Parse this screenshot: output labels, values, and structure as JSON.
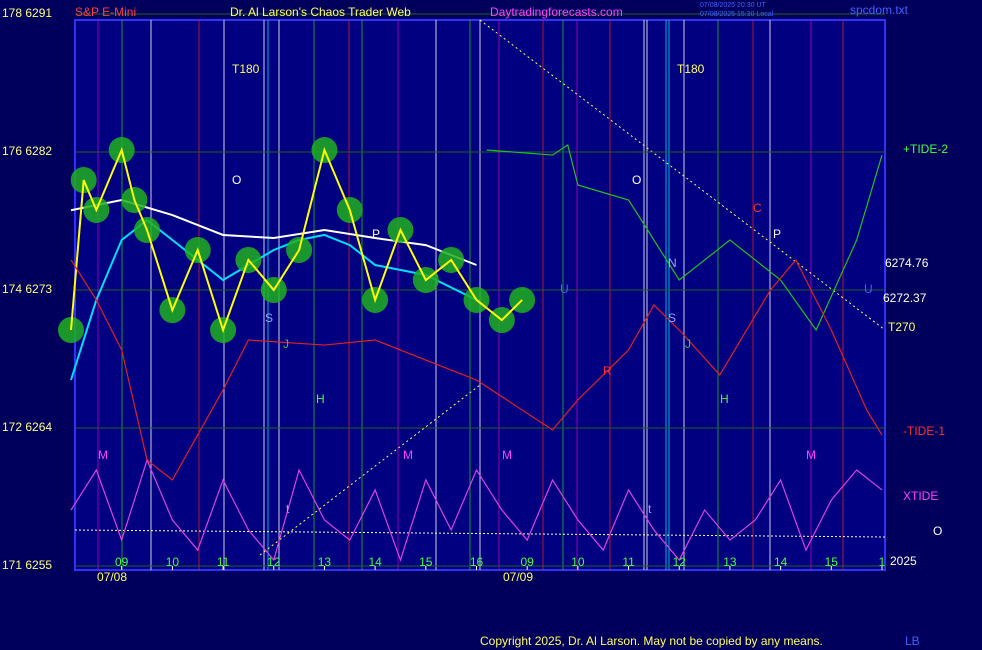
{
  "chart_data": {
    "type": "line",
    "title": "Dr. Al Larson's Chaos Trader Web",
    "symbol": "S&P E-Mini",
    "site": "Daytradingforecasts.com",
    "file": "spcdom.txt",
    "timestamps": [
      "07/08/2025 20:30 UT",
      "07/08/2025 15:30 Local"
    ],
    "copyright": "Copyright 2025, Dr. Al Larson. May not be copied by any means.",
    "corner": "LB",
    "year": "2025",
    "dates": [
      "07/08",
      "07/09"
    ],
    "xlim": [
      0,
      16
    ],
    "xticks": [
      {
        "value": 1,
        "label": "09"
      },
      {
        "value": 2,
        "label": "10"
      },
      {
        "value": 3,
        "label": "11"
      },
      {
        "value": 4,
        "label": "12"
      },
      {
        "value": 5,
        "label": "13"
      },
      {
        "value": 6,
        "label": "14"
      },
      {
        "value": 7,
        "label": "15"
      },
      {
        "value": 8,
        "label": "16"
      },
      {
        "value": 9,
        "label": "09"
      },
      {
        "value": 10,
        "label": "10"
      },
      {
        "value": 11,
        "label": "11"
      },
      {
        "value": 12,
        "label": "12"
      },
      {
        "value": 13,
        "label": "13"
      },
      {
        "value": 14,
        "label": "14"
      },
      {
        "value": 15,
        "label": "15"
      },
      {
        "value": 16,
        "label": "1"
      }
    ],
    "ylim": [
      6255,
      6291
    ],
    "yticks": [
      {
        "value": 6291,
        "label": "178 6291"
      },
      {
        "value": 6282,
        "label": "176 6282"
      },
      {
        "value": 6273,
        "label": "174 6273"
      },
      {
        "value": 6264,
        "label": "172 6264"
      },
      {
        "value": 6255,
        "label": "171 6255"
      }
    ],
    "tide_labels": [
      "+TIDE-2",
      "-TIDE-1",
      "XTIDE",
      "O",
      "T270"
    ],
    "price_labels": [
      6274.76,
      6272.37
    ],
    "annotations": [
      "T180",
      "T180",
      "O",
      "O",
      "S",
      "S",
      "N",
      "P",
      "P",
      "C",
      "H",
      "H",
      "M",
      "M",
      "M",
      "M",
      "t",
      "t",
      "U",
      "U",
      "J",
      "J",
      "R"
    ],
    "series": [
      {
        "color": "#ffffff",
        "x": [
          0,
          1,
          2,
          3,
          4,
          5,
          6,
          7,
          8
        ],
        "values": [
          6278.2,
          6278.87,
          6277.89,
          6276.59,
          6276.39,
          6276.91,
          6276.39,
          6275.93,
          6274.63
        ]
      },
      {
        "color": "#00e0ff",
        "x": [
          0,
          0.5,
          1,
          1.5,
          2,
          2.5,
          3,
          3.5,
          4,
          4.5,
          5,
          5.5,
          6,
          7,
          8
        ],
        "values": [
          6267.13,
          6272.35,
          6276.26,
          6277.56,
          6276.26,
          6274.96,
          6273.65,
          6274.63,
          6275.61,
          6276.26,
          6276.59,
          6275.93,
          6274.63,
          6273.98,
          6272.35
        ]
      },
      {
        "color": "#ffff00",
        "x": [
          0,
          0.25,
          0.5,
          1,
          1.25,
          1.5,
          2,
          2.5,
          3,
          3.5,
          4,
          4.5,
          5,
          5.5,
          6,
          6.5,
          7,
          7.5,
          8,
          8.5,
          8.9
        ],
        "values": [
          6270.39,
          6280.17,
          6278.22,
          6282.13,
          6278.87,
          6276.91,
          6271.69,
          6275.61,
          6270.39,
          6274.96,
          6273,
          6275.61,
          6282.13,
          6278.22,
          6272.35,
          6276.91,
          6273.65,
          6274.96,
          6272.35,
          6271.04,
          6272.35
        ]
      },
      {
        "color": "#20c020",
        "x": [
          8.2,
          9.5,
          9.8,
          10,
          11,
          12,
          13,
          14,
          14.7,
          15.5,
          16
        ],
        "values": [
          6282.13,
          6281.8,
          6282.46,
          6279.85,
          6278.87,
          6273.65,
          6276.26,
          6273.65,
          6270.39,
          6276.26,
          6281.8
        ]
      },
      {
        "color": "#e02020",
        "x": [
          0,
          0.5,
          1,
          1.5,
          2,
          3,
          3.5,
          5,
          6,
          7,
          8,
          9.5,
          10,
          11,
          11.5,
          12,
          12.8,
          13.8,
          14.3,
          15,
          15.7,
          16
        ],
        "values": [
          6274.96,
          6272.35,
          6269.09,
          6261.91,
          6260.61,
          6266.48,
          6269.74,
          6269.41,
          6269.74,
          6268.43,
          6267.13,
          6263.87,
          6265.83,
          6269.09,
          6272.02,
          6270.39,
          6267.46,
          6273,
          6274.96,
          6270.39,
          6265.17,
          6263.54
        ]
      },
      {
        "color": "#e040e0",
        "x": [
          0,
          0.5,
          1,
          1.5,
          2,
          2.5,
          3,
          3.5,
          4,
          4.5,
          5,
          5.5,
          6,
          6.5,
          7,
          7.5,
          8,
          8.5,
          9,
          9.5,
          10,
          10.5,
          11,
          11.5,
          12,
          12.5,
          13,
          13.5,
          14,
          14.5,
          15,
          15.5,
          16
        ],
        "values": [
          6258.65,
          6261.26,
          6256.69,
          6261.91,
          6258,
          6256.04,
          6260.61,
          6257.35,
          6255.39,
          6261.26,
          6258,
          6256.69,
          6259.96,
          6255.39,
          6260.61,
          6257.35,
          6261.26,
          6258.65,
          6256.69,
          6260.61,
          6258,
          6256.04,
          6259.96,
          6257.35,
          6255.39,
          6258.65,
          6256.69,
          6258,
          6260.61,
          6256.04,
          6259.3,
          6261.26,
          6259.96
        ]
      }
    ]
  }
}
